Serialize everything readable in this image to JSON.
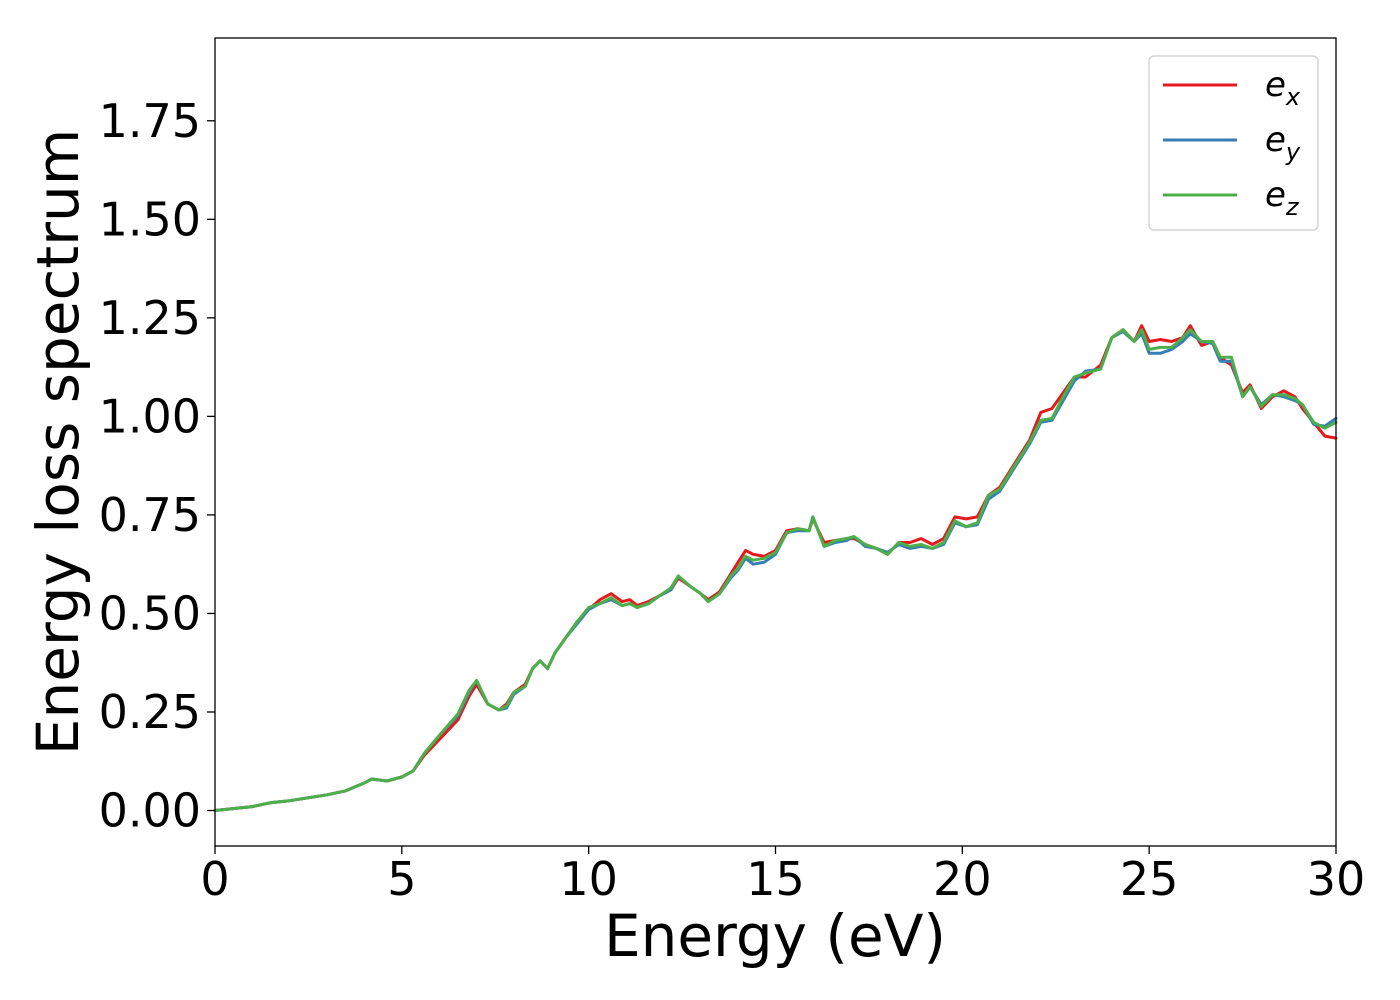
{
  "chart_data": {
    "type": "line",
    "xlabel": "Energy (eV)",
    "ylabel": "Energy loss spectrum",
    "xlim": [
      0,
      30
    ],
    "ylim": [
      -0.09,
      1.96
    ],
    "xticks": [
      0,
      5,
      10,
      15,
      20,
      25,
      30
    ],
    "xtick_labels": [
      "0",
      "5",
      "10",
      "15",
      "20",
      "25",
      "30"
    ],
    "yticks": [
      0.0,
      0.25,
      0.5,
      0.75,
      1.0,
      1.25,
      1.5,
      1.75
    ],
    "ytick_labels": [
      "0.00",
      "0.25",
      "0.50",
      "0.75",
      "1.00",
      "1.25",
      "1.50",
      "1.75"
    ],
    "grid": false,
    "legend_position": "top-right",
    "series": [
      {
        "name": "e",
        "subscript": "x",
        "color": "#e41a1c",
        "x": [
          0,
          1,
          1.5,
          2,
          3,
          3.5,
          4,
          4.2,
          4.6,
          5,
          5.3,
          5.6,
          6,
          6.5,
          6.8,
          7.0,
          7.3,
          7.6,
          7.8,
          8.0,
          8.3,
          8.5,
          8.7,
          8.9,
          9.1,
          9.4,
          9.7,
          10,
          10.3,
          10.6,
          10.9,
          11.1,
          11.3,
          11.6,
          11.9,
          12.2,
          12.4,
          12.7,
          13.0,
          13.2,
          13.5,
          13.8,
          14.0,
          14.2,
          14.4,
          14.7,
          15.0,
          15.3,
          15.6,
          15.9,
          16.0,
          16.3,
          16.6,
          16.9,
          17.1,
          17.4,
          17.7,
          18.0,
          18.3,
          18.6,
          18.9,
          19.2,
          19.5,
          19.8,
          20.1,
          20.4,
          20.7,
          21.0,
          21.4,
          21.8,
          22.1,
          22.4,
          22.7,
          23.0,
          23.3,
          23.7,
          24.0,
          24.3,
          24.6,
          24.8,
          25.0,
          25.3,
          25.6,
          25.9,
          26.1,
          26.4,
          26.7,
          26.9,
          27.2,
          27.5,
          27.7,
          28.0,
          28.3,
          28.6,
          28.9,
          29.1,
          29.4,
          29.7,
          30.0
        ],
        "y": [
          0.0,
          0.01,
          0.02,
          0.025,
          0.04,
          0.05,
          0.07,
          0.08,
          0.075,
          0.085,
          0.1,
          0.14,
          0.18,
          0.23,
          0.29,
          0.32,
          0.27,
          0.255,
          0.27,
          0.3,
          0.32,
          0.36,
          0.38,
          0.36,
          0.4,
          0.44,
          0.48,
          0.51,
          0.535,
          0.55,
          0.53,
          0.535,
          0.52,
          0.53,
          0.545,
          0.56,
          0.59,
          0.57,
          0.55,
          0.535,
          0.555,
          0.6,
          0.63,
          0.66,
          0.65,
          0.645,
          0.66,
          0.71,
          0.715,
          0.71,
          0.74,
          0.68,
          0.685,
          0.69,
          0.69,
          0.675,
          0.665,
          0.65,
          0.68,
          0.68,
          0.69,
          0.675,
          0.69,
          0.745,
          0.74,
          0.745,
          0.8,
          0.82,
          0.88,
          0.94,
          1.01,
          1.02,
          1.06,
          1.1,
          1.1,
          1.13,
          1.2,
          1.22,
          1.19,
          1.23,
          1.19,
          1.195,
          1.19,
          1.2,
          1.23,
          1.18,
          1.19,
          1.15,
          1.13,
          1.06,
          1.08,
          1.02,
          1.05,
          1.065,
          1.05,
          1.02,
          0.985,
          0.95,
          0.945
        ]
      },
      {
        "name": "e",
        "subscript": "y",
        "color": "#377eb8",
        "x": [
          0,
          1,
          1.5,
          2,
          3,
          3.5,
          4,
          4.2,
          4.6,
          5,
          5.3,
          5.6,
          6,
          6.5,
          6.8,
          7.0,
          7.3,
          7.6,
          7.8,
          8.0,
          8.3,
          8.5,
          8.7,
          8.9,
          9.1,
          9.4,
          9.7,
          10,
          10.3,
          10.6,
          10.9,
          11.1,
          11.3,
          11.6,
          11.9,
          12.2,
          12.4,
          12.7,
          13.0,
          13.2,
          13.5,
          13.8,
          14.0,
          14.2,
          14.4,
          14.7,
          15.0,
          15.3,
          15.6,
          15.9,
          16.0,
          16.3,
          16.6,
          16.9,
          17.1,
          17.4,
          17.7,
          18.0,
          18.3,
          18.6,
          18.9,
          19.2,
          19.5,
          19.8,
          20.1,
          20.4,
          20.7,
          21.0,
          21.4,
          21.8,
          22.1,
          22.4,
          22.7,
          23.0,
          23.3,
          23.7,
          24.0,
          24.3,
          24.6,
          24.8,
          25.0,
          25.3,
          25.6,
          25.9,
          26.1,
          26.4,
          26.7,
          26.9,
          27.2,
          27.5,
          27.7,
          28.0,
          28.3,
          28.6,
          28.9,
          29.1,
          29.4,
          29.7,
          30.0
        ],
        "y": [
          0.0,
          0.01,
          0.02,
          0.025,
          0.04,
          0.05,
          0.07,
          0.08,
          0.075,
          0.085,
          0.1,
          0.145,
          0.19,
          0.24,
          0.3,
          0.33,
          0.27,
          0.255,
          0.26,
          0.295,
          0.315,
          0.36,
          0.38,
          0.36,
          0.4,
          0.44,
          0.475,
          0.51,
          0.525,
          0.535,
          0.52,
          0.525,
          0.515,
          0.525,
          0.545,
          0.56,
          0.595,
          0.57,
          0.55,
          0.53,
          0.55,
          0.59,
          0.61,
          0.64,
          0.625,
          0.63,
          0.65,
          0.705,
          0.71,
          0.71,
          0.745,
          0.67,
          0.68,
          0.685,
          0.695,
          0.67,
          0.665,
          0.655,
          0.675,
          0.665,
          0.67,
          0.665,
          0.675,
          0.73,
          0.72,
          0.725,
          0.79,
          0.81,
          0.87,
          0.93,
          0.985,
          0.99,
          1.04,
          1.09,
          1.115,
          1.12,
          1.2,
          1.215,
          1.19,
          1.21,
          1.16,
          1.16,
          1.17,
          1.19,
          1.21,
          1.19,
          1.185,
          1.14,
          1.14,
          1.05,
          1.075,
          1.03,
          1.055,
          1.05,
          1.04,
          1.03,
          0.98,
          0.975,
          0.995
        ]
      },
      {
        "name": "e",
        "subscript": "z",
        "color": "#4daf4a",
        "x": [
          0,
          1,
          1.5,
          2,
          3,
          3.5,
          4,
          4.2,
          4.6,
          5,
          5.3,
          5.6,
          6,
          6.5,
          6.8,
          7.0,
          7.3,
          7.6,
          7.8,
          8.0,
          8.3,
          8.5,
          8.7,
          8.9,
          9.1,
          9.4,
          9.7,
          10,
          10.3,
          10.6,
          10.9,
          11.1,
          11.3,
          11.6,
          11.9,
          12.2,
          12.4,
          12.7,
          13.0,
          13.2,
          13.5,
          13.8,
          14.0,
          14.2,
          14.4,
          14.7,
          15.0,
          15.3,
          15.6,
          15.9,
          16.0,
          16.3,
          16.6,
          16.9,
          17.1,
          17.4,
          17.7,
          18.0,
          18.3,
          18.6,
          18.9,
          19.2,
          19.5,
          19.8,
          20.1,
          20.4,
          20.7,
          21.0,
          21.4,
          21.8,
          22.1,
          22.4,
          22.7,
          23.0,
          23.3,
          23.7,
          24.0,
          24.3,
          24.6,
          24.8,
          25.0,
          25.3,
          25.6,
          25.9,
          26.1,
          26.4,
          26.7,
          26.9,
          27.2,
          27.5,
          27.7,
          28.0,
          28.3,
          28.6,
          28.9,
          29.1,
          29.4,
          29.7,
          30.0
        ],
        "y": [
          0.0,
          0.01,
          0.02,
          0.025,
          0.04,
          0.05,
          0.07,
          0.08,
          0.075,
          0.085,
          0.1,
          0.145,
          0.19,
          0.245,
          0.305,
          0.33,
          0.27,
          0.255,
          0.265,
          0.3,
          0.315,
          0.36,
          0.38,
          0.36,
          0.4,
          0.44,
          0.48,
          0.515,
          0.525,
          0.54,
          0.52,
          0.525,
          0.515,
          0.525,
          0.545,
          0.565,
          0.595,
          0.57,
          0.55,
          0.53,
          0.55,
          0.595,
          0.615,
          0.645,
          0.635,
          0.64,
          0.655,
          0.705,
          0.715,
          0.71,
          0.745,
          0.67,
          0.685,
          0.69,
          0.695,
          0.675,
          0.665,
          0.65,
          0.68,
          0.67,
          0.675,
          0.665,
          0.68,
          0.735,
          0.72,
          0.73,
          0.8,
          0.815,
          0.875,
          0.935,
          0.99,
          0.995,
          1.05,
          1.1,
          1.11,
          1.12,
          1.2,
          1.22,
          1.19,
          1.22,
          1.17,
          1.175,
          1.175,
          1.2,
          1.22,
          1.19,
          1.19,
          1.15,
          1.15,
          1.05,
          1.075,
          1.025,
          1.055,
          1.055,
          1.045,
          1.03,
          0.985,
          0.97,
          0.985
        ]
      }
    ]
  }
}
